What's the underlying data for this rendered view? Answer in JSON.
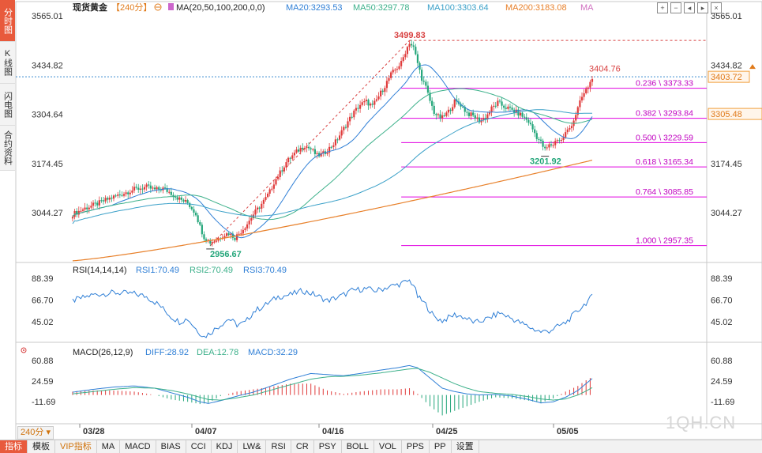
{
  "left_tabs": [
    "分时图",
    "K线图",
    "闪电图",
    "合约资料"
  ],
  "legend": {
    "name": "现货黄金",
    "period": "【240分】",
    "ma_label": "MA(20,50,100,200,0,0)",
    "ma20": "MA20:3293.53",
    "ma50": "MA50:3297.78",
    "ma100": "MA100:3303.64",
    "ma200": "MA200:3183.08",
    "ma_extra": "MA",
    "colors": {
      "ma20": "#2f7fd6",
      "ma50": "#3cb08a",
      "ma100": "#3aa0c8",
      "ma200": "#e8802a",
      "ma_extra": "#d070c0"
    }
  },
  "toolbar_icons": [
    "plus-icon",
    "minus-icon",
    "prev-icon",
    "next-icon",
    "close-icon"
  ],
  "price_axis": {
    "ticks": [
      "3565.01",
      "3434.82",
      "3304.64",
      "3174.45",
      "3044.27"
    ],
    "current_price": "3403.72",
    "ma_price": "3305.48",
    "right_partial": "3304.64"
  },
  "annotations": {
    "high": "3499.83",
    "low": "2956.67",
    "swing_low": "3201.92",
    "last": "3404.76"
  },
  "fib_levels": [
    {
      "label": "0.236 \\ 3373.33",
      "price": 3373.33
    },
    {
      "label": "0.382 \\ 3293.84",
      "price": 3293.84
    },
    {
      "label": "0.500 \\ 3229.59",
      "price": 3229.59
    },
    {
      "label": "0.618 \\ 3165.34",
      "price": 3165.34
    },
    {
      "label": "0.764 \\ 3085.85",
      "price": 3085.85
    },
    {
      "label": "1.000 \\ 2957.35",
      "price": 2957.35
    }
  ],
  "rsi": {
    "title": "RSI(14,14,14)",
    "rsi1": "RSI1:70.49",
    "rsi2": "RSI2:70.49",
    "rsi3": "RSI3:70.49",
    "ticks": [
      "88.39",
      "66.70",
      "45.02"
    ]
  },
  "macd": {
    "title": "MACD(26,12,9)",
    "diff": "DIFF:28.92",
    "dea": "DEA:12.78",
    "macd": "MACD:32.29",
    "ticks": [
      "60.88",
      "24.59",
      "-11.69"
    ]
  },
  "date_labels": [
    "03/28",
    "04/07",
    "04/16",
    "04/25",
    "05/05"
  ],
  "bottom_tabs": [
    "指标",
    "模板",
    "VIP指标",
    "MA",
    "MACD",
    "BIAS",
    "CCI",
    "KDJ",
    "LW&",
    "RSI",
    "CR",
    "PSY",
    "BOLL",
    "VOL",
    "PPS",
    "PP",
    "设置"
  ],
  "period_selector": "240分",
  "watermark": "1QH.CN",
  "chart_data": {
    "type": "candlestick",
    "instrument": "现货黄金",
    "period": "240分",
    "price_axis_ticks": [
      3565.01,
      3434.82,
      3304.64,
      3174.45,
      3044.27
    ],
    "price_range": [
      2930,
      3580
    ],
    "close_path": [
      [
        0,
        3040
      ],
      [
        6,
        3056
      ],
      [
        12,
        3068
      ],
      [
        18,
        3082
      ],
      [
        24,
        3094
      ],
      [
        30,
        3106
      ],
      [
        36,
        3112
      ],
      [
        40,
        3105
      ],
      [
        44,
        3108
      ],
      [
        48,
        3096
      ],
      [
        52,
        3080
      ],
      [
        56,
        3070
      ],
      [
        60,
        3042
      ],
      [
        62,
        3008
      ],
      [
        64,
        2980
      ],
      [
        67,
        2966
      ],
      [
        70,
        2972
      ],
      [
        73,
        2985
      ],
      [
        76,
        2990
      ],
      [
        79,
        2978
      ],
      [
        82,
        2995
      ],
      [
        85,
        3015
      ],
      [
        88,
        3040
      ],
      [
        91,
        3060
      ],
      [
        94,
        3082
      ],
      [
        96,
        3100
      ],
      [
        98,
        3125
      ],
      [
        101,
        3150
      ],
      [
        104,
        3178
      ],
      [
        107,
        3195
      ],
      [
        110,
        3210
      ],
      [
        113,
        3222
      ],
      [
        116,
        3212
      ],
      [
        119,
        3195
      ],
      [
        122,
        3200
      ],
      [
        125,
        3215
      ],
      [
        128,
        3232
      ],
      [
        131,
        3258
      ],
      [
        134,
        3285
      ],
      [
        137,
        3310
      ],
      [
        140,
        3330
      ],
      [
        143,
        3338
      ],
      [
        146,
        3325
      ],
      [
        149,
        3352
      ],
      [
        152,
        3380
      ],
      [
        155,
        3410
      ],
      [
        158,
        3428
      ],
      [
        160,
        3440
      ],
      [
        162,
        3470
      ],
      [
        164,
        3495
      ],
      [
        166,
        3480
      ],
      [
        168,
        3440
      ],
      [
        170,
        3400
      ],
      [
        172,
        3375
      ],
      [
        174,
        3340
      ],
      [
        176,
        3310
      ],
      [
        178,
        3298
      ],
      [
        180,
        3295
      ],
      [
        183,
        3312
      ],
      [
        186,
        3338
      ],
      [
        189,
        3330
      ],
      [
        192,
        3308
      ],
      [
        195,
        3300
      ],
      [
        198,
        3288
      ],
      [
        201,
        3296
      ],
      [
        204,
        3320
      ],
      [
        207,
        3335
      ],
      [
        210,
        3325
      ],
      [
        213,
        3318
      ],
      [
        216,
        3310
      ],
      [
        219,
        3300
      ],
      [
        222,
        3285
      ],
      [
        224,
        3265
      ],
      [
        226,
        3245
      ],
      [
        228,
        3230
      ],
      [
        230,
        3210
      ],
      [
        232,
        3222
      ],
      [
        234,
        3225
      ],
      [
        236,
        3240
      ],
      [
        238,
        3235
      ],
      [
        240,
        3255
      ],
      [
        242,
        3268
      ],
      [
        244,
        3290
      ],
      [
        246,
        3320
      ],
      [
        248,
        3350
      ],
      [
        250,
        3368
      ],
      [
        252,
        3388
      ],
      [
        253,
        3404
      ]
    ],
    "ma_lines": [
      {
        "name": "MA20",
        "value": 3293.53,
        "color": "#2f7fd6"
      },
      {
        "name": "MA50",
        "value": 3297.78,
        "color": "#3cb08a"
      },
      {
        "name": "MA100",
        "value": 3303.64,
        "color": "#3aa0c8"
      },
      {
        "name": "MA200",
        "value": 3183.08,
        "color": "#e8802a"
      }
    ],
    "fibonacci": {
      "high": 3499.83,
      "low": 2957.35,
      "levels": [
        [
          0.236,
          3373.33
        ],
        [
          0.382,
          3293.84
        ],
        [
          0.5,
          3229.59
        ],
        [
          0.618,
          3165.34
        ],
        [
          0.764,
          3085.85
        ],
        [
          1.0,
          2957.35
        ]
      ]
    },
    "labels": {
      "high": 3499.83,
      "low": 2956.67,
      "swing_low": 3201.92,
      "last": 3404.76,
      "current": 3403.72
    },
    "rsi": {
      "range": [
        30,
        95
      ],
      "ticks": [
        88.39,
        66.7,
        45.02
      ],
      "value": 70.49,
      "path": [
        [
          0,
          66
        ],
        [
          10,
          72
        ],
        [
          20,
          74
        ],
        [
          30,
          73
        ],
        [
          36,
          70
        ],
        [
          42,
          62
        ],
        [
          48,
          50
        ],
        [
          52,
          45
        ],
        [
          56,
          48
        ],
        [
          60,
          38
        ],
        [
          64,
          30
        ],
        [
          67,
          34
        ],
        [
          72,
          42
        ],
        [
          76,
          48
        ],
        [
          80,
          42
        ],
        [
          84,
          44
        ],
        [
          88,
          55
        ],
        [
          94,
          62
        ],
        [
          100,
          70
        ],
        [
          106,
          72
        ],
        [
          112,
          76
        ],
        [
          118,
          72
        ],
        [
          124,
          66
        ],
        [
          130,
          70
        ],
        [
          136,
          76
        ],
        [
          142,
          78
        ],
        [
          148,
          76
        ],
        [
          154,
          80
        ],
        [
          160,
          83
        ],
        [
          164,
          86
        ],
        [
          166,
          82
        ],
        [
          168,
          70
        ],
        [
          172,
          62
        ],
        [
          176,
          50
        ],
        [
          180,
          46
        ],
        [
          186,
          52
        ],
        [
          190,
          50
        ],
        [
          196,
          44
        ],
        [
          202,
          48
        ],
        [
          208,
          54
        ],
        [
          212,
          50
        ],
        [
          216,
          46
        ],
        [
          220,
          42
        ],
        [
          224,
          38
        ],
        [
          228,
          35
        ],
        [
          232,
          36
        ],
        [
          236,
          40
        ],
        [
          240,
          44
        ],
        [
          244,
          52
        ],
        [
          248,
          60
        ],
        [
          251,
          66
        ],
        [
          253,
          70
        ]
      ]
    },
    "macd": {
      "range": [
        -30,
        70
      ],
      "ticks": [
        60.88,
        24.59,
        -11.69
      ],
      "diff": 28.92,
      "dea": 12.78,
      "macd": 32.29,
      "diff_path": [
        [
          0,
          5
        ],
        [
          10,
          10
        ],
        [
          20,
          14
        ],
        [
          30,
          16
        ],
        [
          40,
          12
        ],
        [
          48,
          4
        ],
        [
          56,
          -4
        ],
        [
          62,
          -12
        ],
        [
          66,
          -15
        ],
        [
          72,
          -10
        ],
        [
          80,
          -2
        ],
        [
          88,
          5
        ],
        [
          96,
          15
        ],
        [
          106,
          28
        ],
        [
          116,
          38
        ],
        [
          124,
          36
        ],
        [
          132,
          34
        ],
        [
          140,
          38
        ],
        [
          150,
          44
        ],
        [
          158,
          48
        ],
        [
          164,
          52
        ],
        [
          168,
          48
        ],
        [
          174,
          30
        ],
        [
          180,
          12
        ],
        [
          186,
          6
        ],
        [
          192,
          2
        ],
        [
          198,
          0
        ],
        [
          206,
          1
        ],
        [
          214,
          -2
        ],
        [
          222,
          -8
        ],
        [
          228,
          -14
        ],
        [
          234,
          -12
        ],
        [
          240,
          -4
        ],
        [
          246,
          8
        ],
        [
          250,
          20
        ],
        [
          253,
          29
        ]
      ],
      "dea_path": [
        [
          0,
          2
        ],
        [
          10,
          6
        ],
        [
          20,
          10
        ],
        [
          30,
          13
        ],
        [
          40,
          12
        ],
        [
          48,
          8
        ],
        [
          56,
          2
        ],
        [
          62,
          -4
        ],
        [
          66,
          -8
        ],
        [
          72,
          -9
        ],
        [
          80,
          -5
        ],
        [
          88,
          0
        ],
        [
          96,
          8
        ],
        [
          106,
          18
        ],
        [
          116,
          28
        ],
        [
          124,
          32
        ],
        [
          132,
          33
        ],
        [
          140,
          35
        ],
        [
          150,
          39
        ],
        [
          158,
          43
        ],
        [
          164,
          46
        ],
        [
          168,
          47
        ],
        [
          174,
          40
        ],
        [
          180,
          30
        ],
        [
          186,
          20
        ],
        [
          192,
          12
        ],
        [
          198,
          6
        ],
        [
          206,
          3
        ],
        [
          214,
          1
        ],
        [
          222,
          -3
        ],
        [
          228,
          -7
        ],
        [
          234,
          -9
        ],
        [
          240,
          -7
        ],
        [
          246,
          0
        ],
        [
          250,
          7
        ],
        [
          253,
          13
        ]
      ]
    }
  }
}
